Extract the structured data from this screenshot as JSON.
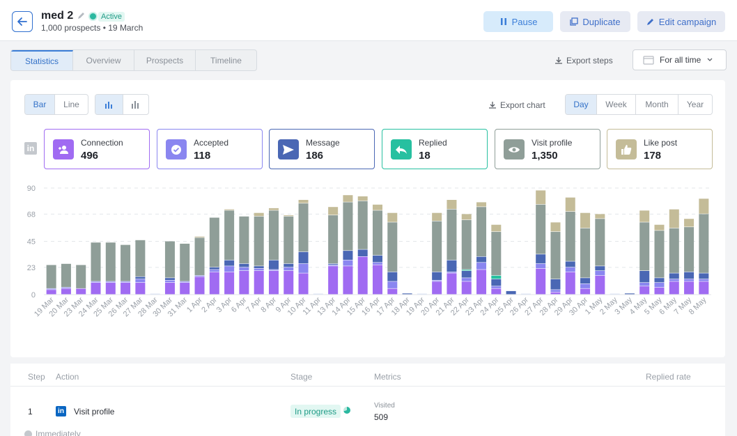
{
  "header": {
    "campaign_name": "med 2",
    "status": "Active",
    "subtitle": "1,000 prospects • 19 March",
    "pause_label": "Pause",
    "duplicate_label": "Duplicate",
    "edit_label": "Edit campaign"
  },
  "tabs": [
    {
      "label": "Statistics",
      "active": true
    },
    {
      "label": "Overview",
      "active": false
    },
    {
      "label": "Prospects",
      "active": false
    },
    {
      "label": "Timeline",
      "active": false
    }
  ],
  "export_steps_label": "Export steps",
  "time_range": "For all time",
  "chart_controls": {
    "type_options": [
      "Bar",
      "Line"
    ],
    "type_selected": "Bar",
    "export_chart_label": "Export chart",
    "period_options": [
      "Day",
      "Week",
      "Month",
      "Year"
    ],
    "period_selected": "Day"
  },
  "stats": [
    {
      "label": "Connection",
      "value": "496",
      "color": "#a06bf2",
      "icon": "add-user-icon"
    },
    {
      "label": "Accepted",
      "value": "118",
      "color": "#8a86f0",
      "icon": "check-circle-icon"
    },
    {
      "label": "Message",
      "value": "186",
      "color": "#4a67b4",
      "icon": "send-icon"
    },
    {
      "label": "Replied",
      "value": "18",
      "color": "#27c0a0",
      "icon": "reply-icon"
    },
    {
      "label": "Visit profile",
      "value": "1,350",
      "color": "#8f9e98",
      "icon": "eye-icon"
    },
    {
      "label": "Like post",
      "value": "178",
      "color": "#c4bc98",
      "icon": "thumbs-up-icon"
    }
  ],
  "chart_data": {
    "type": "bar",
    "stacked": true,
    "ylim": [
      0,
      90
    ],
    "yticks": [
      0,
      23,
      45,
      68,
      90
    ],
    "grid": true,
    "categories": [
      "19 Mar",
      "20 Mar",
      "23 Mar",
      "24 Mar",
      "25 Mar",
      "26 Mar",
      "27 Mar",
      "28 Mar",
      "30 Mar",
      "31 Mar",
      "1 Apr",
      "2 Apr",
      "3 Apr",
      "6 Apr",
      "7 Apr",
      "8 Apr",
      "9 Apr",
      "10 Apr",
      "11 Apr",
      "13 Apr",
      "14 Apr",
      "15 Apr",
      "16 Apr",
      "17 Apr",
      "18 Apr",
      "19 Apr",
      "20 Apr",
      "21 Apr",
      "22 Apr",
      "23 Apr",
      "24 Apr",
      "25 Apr",
      "26 Apr",
      "27 Apr",
      "28 Apr",
      "29 Apr",
      "30 Apr",
      "1 May",
      "2 May",
      "3 May",
      "4 May",
      "5 May",
      "6 May",
      "7 May",
      "8 May"
    ],
    "series": [
      {
        "name": "Connection",
        "color": "#a06bf2",
        "values": [
          4,
          5,
          5,
          10,
          10,
          10,
          10,
          0,
          10,
          10,
          15,
          19,
          19,
          20,
          20,
          20,
          20,
          18,
          0,
          24,
          24,
          32,
          25,
          5,
          0,
          0,
          11,
          18,
          11,
          21,
          5,
          0,
          0,
          22,
          2,
          19,
          5,
          16,
          0,
          0,
          7,
          6,
          11,
          11,
          11
        ]
      },
      {
        "name": "Accepted",
        "color": "#8a86f0",
        "values": [
          1,
          1,
          0,
          1,
          1,
          1,
          3,
          0,
          2,
          1,
          1,
          2,
          5,
          3,
          2,
          1,
          3,
          8,
          0,
          1,
          5,
          0,
          2,
          6,
          0,
          0,
          1,
          1,
          3,
          6,
          2,
          0,
          0,
          4,
          2,
          4,
          4,
          4,
          0,
          0,
          3,
          4,
          2,
          2,
          2
        ]
      },
      {
        "name": "Message",
        "color": "#4a67b4",
        "values": [
          0,
          0,
          0,
          0,
          0,
          0,
          2,
          0,
          2,
          0,
          0,
          2,
          5,
          3,
          2,
          8,
          3,
          10,
          0,
          1,
          8,
          6,
          6,
          8,
          1,
          0,
          7,
          10,
          6,
          5,
          6,
          3,
          0,
          8,
          9,
          5,
          5,
          4,
          0,
          1,
          10,
          4,
          5,
          6,
          5
        ]
      },
      {
        "name": "Replied",
        "color": "#27c0a0",
        "values": [
          0,
          0,
          0,
          0,
          0,
          0,
          0,
          0,
          0,
          0,
          0,
          0,
          0,
          0,
          0,
          0,
          0,
          0,
          0,
          0,
          0,
          0,
          0,
          0,
          0,
          0,
          0,
          0,
          1,
          0,
          3,
          0,
          0,
          0,
          0,
          0,
          0,
          0,
          0,
          0,
          0,
          0,
          0,
          0,
          0
        ]
      },
      {
        "name": "Visit profile",
        "color": "#8f9e98",
        "values": [
          20,
          20,
          20,
          33,
          33,
          31,
          31,
          0,
          31,
          32,
          32,
          42,
          42,
          40,
          42,
          42,
          40,
          41,
          0,
          41,
          41,
          41,
          38,
          42,
          0,
          0,
          43,
          43,
          42,
          42,
          37,
          0,
          0,
          42,
          40,
          42,
          42,
          40,
          0,
          0,
          41,
          40,
          38,
          38,
          50
        ]
      },
      {
        "name": "Like post",
        "color": "#c4bc98",
        "values": [
          0,
          0,
          0,
          0,
          0,
          0,
          0,
          0,
          0,
          0,
          1,
          0,
          1,
          0,
          3,
          2,
          1,
          3,
          0,
          7,
          6,
          4,
          5,
          8,
          0,
          0,
          7,
          8,
          5,
          4,
          6,
          0,
          0,
          12,
          8,
          12,
          13,
          4,
          0,
          0,
          10,
          5,
          16,
          7,
          13
        ]
      }
    ]
  },
  "table": {
    "headers": {
      "step": "Step",
      "action": "Action",
      "stage": "Stage",
      "metrics": "Metrics",
      "replied_rate": "Replied rate"
    },
    "rows": [
      {
        "step": "1",
        "action": "Visit profile",
        "stage": "In progress",
        "metric_label": "Visited",
        "metric_value": "509"
      }
    ],
    "delay_label": "Immediately"
  }
}
